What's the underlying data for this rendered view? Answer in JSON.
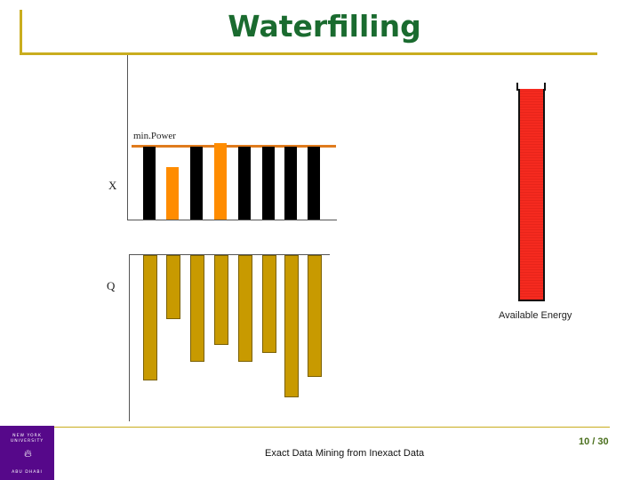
{
  "slide": {
    "title": "Waterfilling",
    "footer_text": "Exact Data Mining from Inexact Data",
    "page_number": "10 / 30"
  },
  "logo": {
    "line1": "NEW YORK",
    "line2": "UNIVERSITY",
    "line3": "ABU DHABI",
    "icon": "torch-icon"
  },
  "diagram": {
    "min_power_label": "min.Power",
    "x_label": "X",
    "q_label": "Q",
    "energy_label": "Available Energy",
    "x_bars": [
      {
        "color": "black",
        "level": 1.0
      },
      {
        "color": "orange",
        "level": 0.72
      },
      {
        "color": "black",
        "level": 1.0
      },
      {
        "color": "orange",
        "level": 1.05
      },
      {
        "color": "black",
        "level": 1.0
      },
      {
        "color": "black",
        "level": 1.0
      },
      {
        "color": "black",
        "level": 1.0
      },
      {
        "color": "black",
        "level": 1.0
      }
    ],
    "q_bars": [
      0.74,
      0.38,
      0.63,
      0.53,
      0.63,
      0.58,
      0.84,
      0.72
    ],
    "energy_level": 1.0,
    "colors": {
      "title": "#1a6b2f",
      "accent_line": "#c9ad1e",
      "min_power_line": "#e07b1d",
      "gold_bar": "#c89a00",
      "energy": "#f52a1f",
      "logo_bg": "#56088a"
    }
  }
}
